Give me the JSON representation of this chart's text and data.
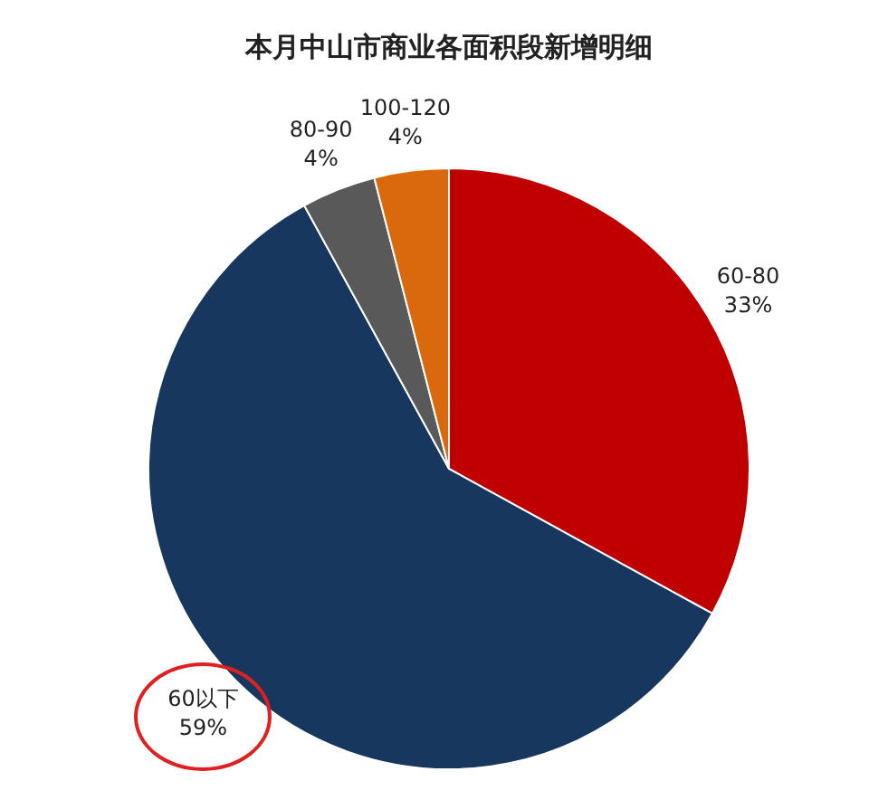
{
  "chart_data": {
    "type": "pie",
    "title": "本月中山市商业各面积段新增明细",
    "categories": [
      "60-80",
      "60以下",
      "80-90",
      "100-120"
    ],
    "values": [
      33,
      59,
      4,
      4
    ],
    "value_labels": [
      "33%",
      "59%",
      "4%",
      "4%"
    ],
    "colors": [
      "#c00000",
      "#17375e",
      "#595959",
      "#d9690c"
    ],
    "legend": false
  }
}
